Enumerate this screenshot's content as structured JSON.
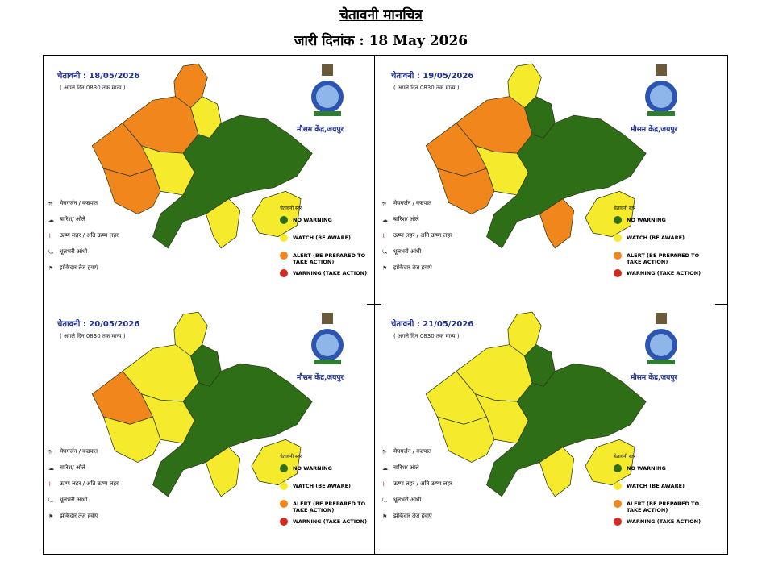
{
  "header": {
    "title": "चेतावनी मानचित्र",
    "issue_date": "जारी दिनांक : 18 May 2026"
  },
  "colors": {
    "no_warning": "#2e6e17",
    "watch": "#f5ea2c",
    "alert": "#f0861c",
    "warning": "#d32a22",
    "border": "#2a3a1a"
  },
  "common": {
    "valid_until": "( अगले दिन 0830 तक मान्य )",
    "office": "मौसम केंद्र,जयपुर",
    "legend_symbols": [
      "मेघगर्जन / वज्रपात",
      "बारिश/ ओले",
      "ऊष्ण लहर / अति ऊष्ण लहर",
      "धूलभरी आंधी",
      "झोंकेदार तेज हवाएं"
    ],
    "legend_symbol_icons": [
      "thunderstorm-icon",
      "hail-icon",
      "heatwave-icon",
      "duststorm-icon",
      "gusty-wind-icon"
    ],
    "level_heading": "चेतावनी स्तर",
    "levels": [
      "NO WARNING",
      "WATCH (BE AWARE)",
      "ALERT (BE PREPARED TO TAKE ACTION)",
      "WARNING (TAKE ACTION)"
    ]
  },
  "panels": [
    {
      "date": "चेतावनी :  18/05/2026",
      "region_levels": {
        "north_west": "alert",
        "far_north": "alert",
        "north_central": "watch",
        "west": "alert",
        "central_west": "watch",
        "south_west": "alert",
        "east": "none",
        "south_east": "watch",
        "south": "watch"
      }
    },
    {
      "date": "चेतावनी :  19/05/2026",
      "region_levels": {
        "north_west": "alert",
        "far_north": "watch",
        "north_central": "none",
        "west": "alert",
        "central_west": "watch",
        "south_west": "alert",
        "east": "none",
        "south_east": "watch",
        "south": "alert"
      }
    },
    {
      "date": "चेतावनी :  20/05/2026",
      "region_levels": {
        "north_west": "watch",
        "far_north": "watch",
        "north_central": "none",
        "west": "alert",
        "central_west": "watch",
        "south_west": "watch",
        "east": "none",
        "south_east": "watch",
        "south": "watch"
      }
    },
    {
      "date": "चेतावनी :  21/05/2026",
      "region_levels": {
        "north_west": "watch",
        "far_north": "watch",
        "north_central": "none",
        "west": "watch",
        "central_west": "watch",
        "south_west": "watch",
        "east": "none",
        "south_east": "watch",
        "south": "watch"
      }
    }
  ]
}
